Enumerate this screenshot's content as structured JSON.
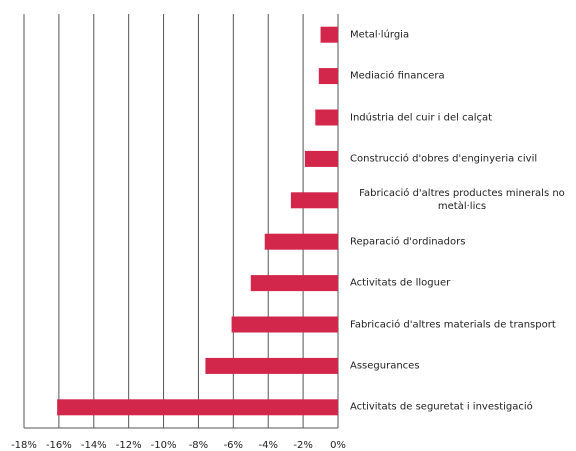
{
  "chart_data": {
    "type": "barh",
    "categories": [
      "Metal·lúrgia",
      "Mediació financera",
      "Indústria del cuir i del calçat",
      "Construcció d'obres d'enginyeria civil",
      "Fabricació d'altres productes minerals no metàl·lics",
      "Reparació d'ordinadors",
      "Activitats de lloguer",
      "Fabricació d'altres materials de transport",
      "Assegurances",
      "Activitats de seguretat i investigació"
    ],
    "values": [
      -1.0,
      -1.1,
      -1.3,
      -1.9,
      -2.7,
      -4.2,
      -5.0,
      -6.1,
      -7.6,
      -16.1
    ],
    "color": "#d2264b",
    "xlim": [
      -18,
      0
    ],
    "xticks": [
      {
        "value": -18,
        "label": "-18%"
      },
      {
        "value": -16,
        "label": "-16%"
      },
      {
        "value": -14,
        "label": "-14%"
      },
      {
        "value": -12,
        "label": "-12%"
      },
      {
        "value": -10,
        "label": "-10%"
      },
      {
        "value": -8,
        "label": "-8%"
      },
      {
        "value": -6,
        "label": "-6%"
      },
      {
        "value": -4,
        "label": "-4%"
      },
      {
        "value": -2,
        "label": "-2%"
      },
      {
        "value": 0,
        "label": "0%"
      }
    ],
    "grid": true
  }
}
